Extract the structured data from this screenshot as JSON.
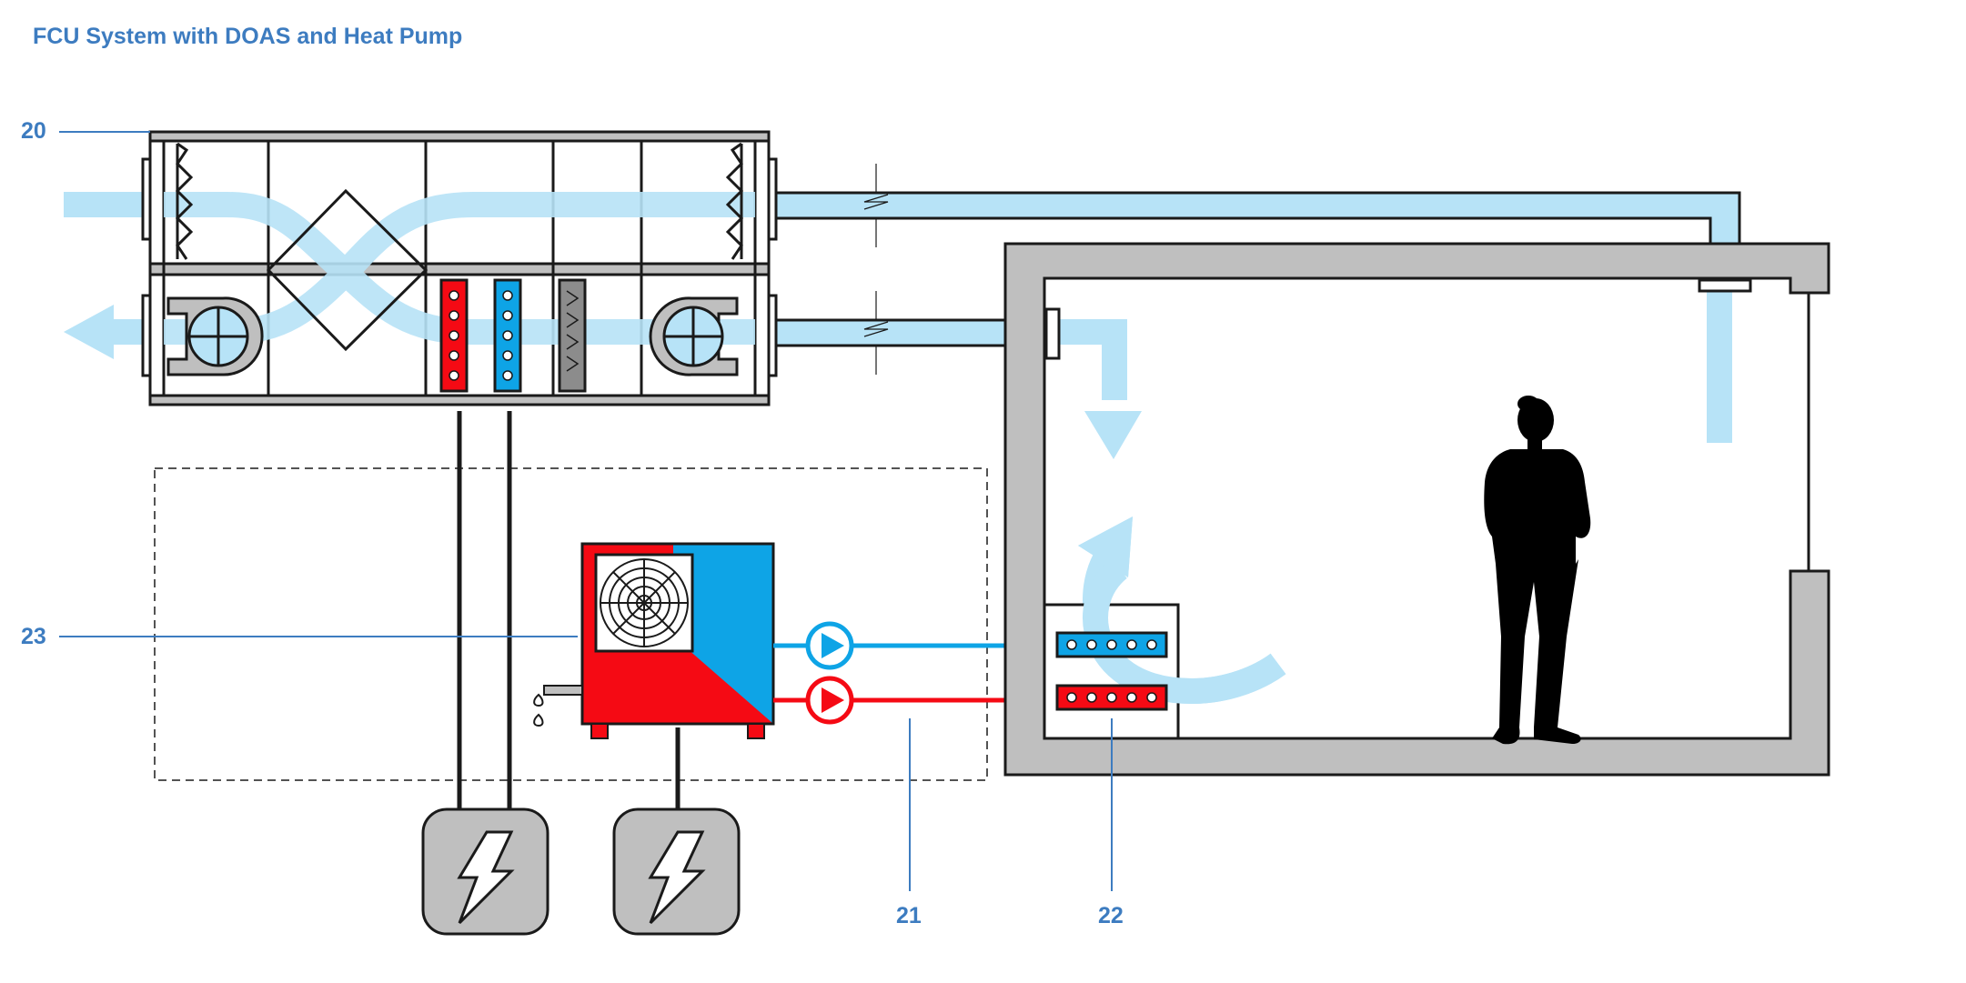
{
  "title": "FCU System with DOAS and Heat Pump",
  "callouts": [
    {
      "id": "20",
      "text": "20"
    },
    {
      "id": "21",
      "text": "21"
    },
    {
      "id": "22",
      "text": "22"
    },
    {
      "id": "23",
      "text": "23"
    }
  ],
  "colors": {
    "label_blue": "#3d7cc0",
    "air_flow": "#b7e3f7",
    "chilled_water": "#0ea4e6",
    "hot_water": "#f50a14",
    "wall_grey": "#bfbfbf",
    "outline": "#222222"
  },
  "components": {
    "doas_unit": "dedicated-outdoor-air-unit",
    "heat_recovery": "heat-recovery-core",
    "heating_coil": "heating-coil",
    "cooling_coil": "cooling-coil",
    "filter": "filter",
    "supply_fan": "supply-fan",
    "exhaust_fan": "exhaust-fan",
    "heat_pump": "heat-pump-outdoor-unit",
    "fan_coil": "fan-coil-unit",
    "power_supply": "power-icon",
    "occupant": "person-silhouette"
  }
}
